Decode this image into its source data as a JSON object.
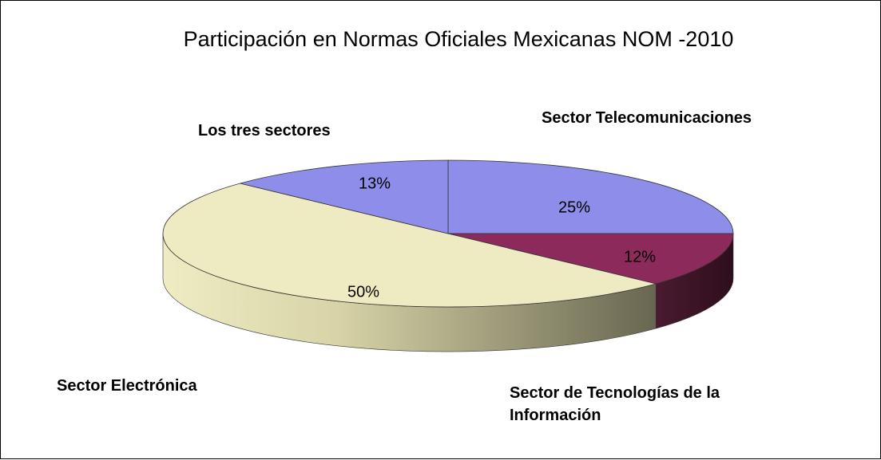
{
  "chart_data": {
    "type": "pie",
    "title": "Participación en Normas Oficiales Mexicanas NOM -2010",
    "categories": [
      "Sector Telecomunicaciones",
      "Sector de Tecnologías de la Información",
      "Sector Electrónica",
      "Los tres sectores"
    ],
    "values": [
      25,
      12,
      50,
      13
    ],
    "value_labels": [
      "25%",
      "12%",
      "50%",
      "13%"
    ],
    "colors": [
      "#8e8eea",
      "#8c2b5b",
      "#eeebc2",
      "#8e8eea"
    ]
  }
}
